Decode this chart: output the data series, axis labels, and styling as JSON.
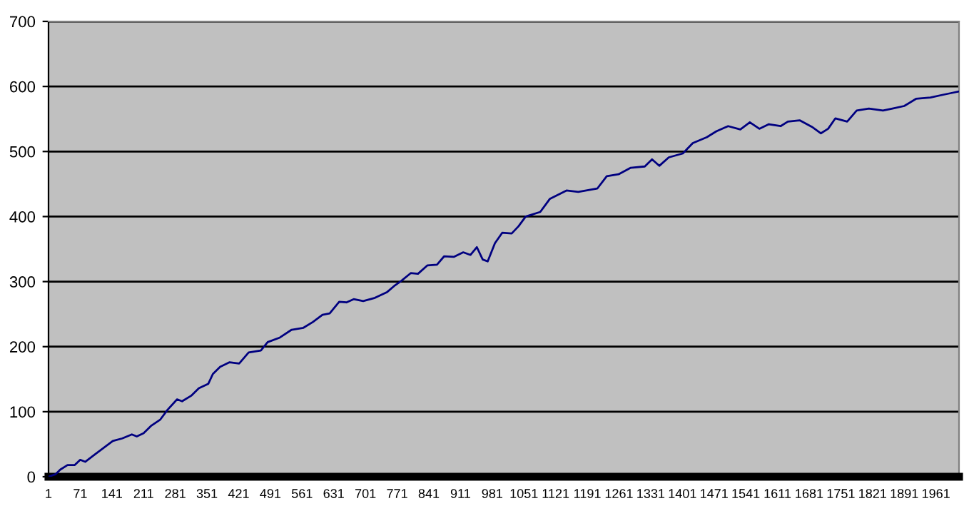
{
  "chart_data": {
    "type": "line",
    "x": [
      1,
      17,
      27,
      43,
      59,
      71,
      82,
      101,
      122,
      143,
      164,
      185,
      196,
      211,
      227,
      248,
      264,
      285,
      296,
      317,
      333,
      354,
      364,
      380,
      401,
      422,
      443,
      470,
      485,
      512,
      538,
      564,
      585,
      606,
      622,
      643,
      659,
      675,
      696,
      722,
      749,
      764,
      780,
      801,
      817,
      838,
      859,
      875,
      896,
      917,
      933,
      947,
      960,
      971,
      987,
      1003,
      1024,
      1039,
      1055,
      1087,
      1108,
      1145,
      1171,
      1213,
      1234,
      1260,
      1287,
      1318,
      1334,
      1350,
      1371,
      1402,
      1424,
      1455,
      1476,
      1502,
      1529,
      1550,
      1571,
      1592,
      1618,
      1634,
      1660,
      1687,
      1707,
      1723,
      1739,
      1765,
      1786,
      1813,
      1844,
      1865,
      1891,
      1917,
      1949,
      1975,
      1996,
      2010
    ],
    "series": [
      {
        "color": "#000080",
        "values": [
          0,
          4,
          11,
          18,
          18,
          26,
          23,
          33,
          44,
          55,
          59,
          65,
          62,
          67,
          78,
          88,
          103,
          119,
          116,
          125,
          136,
          143,
          158,
          169,
          176,
          174,
          191,
          194,
          207,
          214,
          226,
          229,
          238,
          249,
          251,
          269,
          268,
          273,
          270,
          275,
          284,
          293,
          301,
          313,
          312,
          325,
          326,
          339,
          338,
          345,
          341,
          353,
          334,
          331,
          359,
          375,
          374,
          385,
          400,
          407,
          427,
          440,
          438,
          443,
          462,
          465,
          475,
          477,
          488,
          478,
          491,
          497,
          513,
          522,
          531,
          539,
          534,
          545,
          535,
          542,
          539,
          546,
          548,
          538,
          528,
          535,
          551,
          546,
          563,
          566,
          563,
          566,
          570,
          581,
          583,
          587,
          590,
          592
        ]
      }
    ],
    "xlim": [
      1,
      2012
    ],
    "xticks": [
      1,
      71,
      141,
      211,
      281,
      351,
      421,
      491,
      561,
      631,
      701,
      771,
      841,
      911,
      981,
      1051,
      1121,
      1191,
      1261,
      1331,
      1401,
      1471,
      1541,
      1611,
      1681,
      1751,
      1821,
      1891,
      1961
    ],
    "ylim": [
      0,
      700
    ],
    "yticks": [
      0,
      100,
      200,
      300,
      400,
      500,
      600,
      700
    ],
    "grid": "y"
  }
}
